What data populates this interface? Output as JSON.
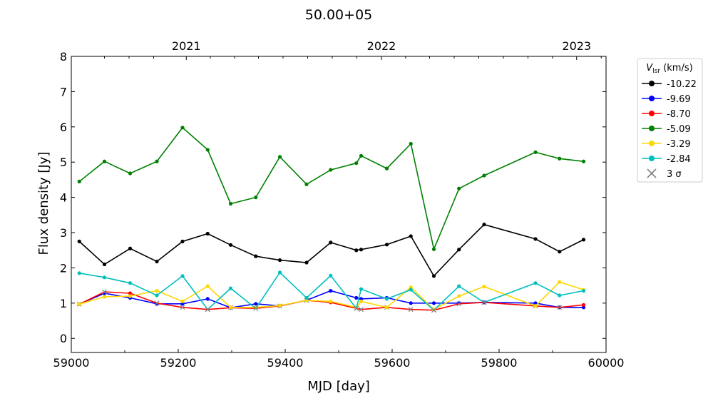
{
  "chart_data": {
    "type": "line",
    "title": "50.00+05",
    "xlabel": "MJD [day]",
    "ylabel": "Flux density [Jy]",
    "xlim": [
      59000,
      60000
    ],
    "ylim": [
      -0.4,
      8
    ],
    "xticks": [
      59000,
      59200,
      59400,
      59600,
      59800,
      60000
    ],
    "yticks": [
      0,
      1,
      2,
      3,
      4,
      5,
      6,
      7,
      8
    ],
    "top_axis": {
      "ticks": [
        {
          "label": "2021",
          "mjd": 59215
        },
        {
          "label": "2022",
          "mjd": 59580
        },
        {
          "label": "2023",
          "mjd": 59945
        }
      ]
    },
    "grid": false,
    "legend": {
      "placement": "outside-right",
      "title_main": "V",
      "title_sub": "lsr",
      "title_unit": " (km/s)",
      "limit_symbol": "3 σ",
      "limit_color": "#808080"
    },
    "x": [
      59015,
      59062,
      59110,
      59160,
      59208,
      59255,
      59298,
      59345,
      59390,
      59440,
      59485,
      59533,
      59542,
      59590,
      59635,
      59678,
      59725,
      59772,
      59868,
      59913,
      59958
    ],
    "series": [
      {
        "name": "-10.22",
        "color": "#000000",
        "values": [
          2.75,
          2.1,
          2.55,
          2.18,
          2.75,
          2.97,
          2.65,
          2.33,
          2.22,
          2.15,
          2.72,
          2.5,
          2.52,
          2.66,
          2.9,
          1.77,
          2.52,
          3.23,
          2.82,
          2.46,
          2.8
        ],
        "upper_limits": []
      },
      {
        "name": "-9.69",
        "color": "#0000ff",
        "values": [
          0.97,
          1.28,
          1.15,
          0.98,
          0.98,
          1.12,
          0.87,
          0.98,
          0.92,
          1.08,
          1.35,
          1.15,
          1.12,
          1.15,
          1.0,
          1.0,
          1.0,
          1.02,
          1.0,
          0.88,
          0.88
        ],
        "upper_limits": []
      },
      {
        "name": "-8.70",
        "color": "#ff0000",
        "values": [
          0.97,
          1.32,
          1.28,
          1.0,
          0.88,
          0.82,
          0.87,
          0.85,
          0.92,
          1.08,
          1.02,
          0.85,
          0.82,
          0.88,
          0.82,
          0.8,
          0.98,
          1.02,
          0.92,
          0.88,
          0.95
        ],
        "upper_limits": [
          0,
          1,
          3,
          4,
          5,
          6,
          7,
          8,
          9,
          11,
          12,
          13,
          14,
          15,
          16,
          17,
          18,
          19
        ]
      },
      {
        "name": "-5.09",
        "color": "#008000",
        "values": [
          4.45,
          5.02,
          4.68,
          5.02,
          5.98,
          5.35,
          3.82,
          4.0,
          5.15,
          4.37,
          4.78,
          4.97,
          5.18,
          4.82,
          5.52,
          2.53,
          4.25,
          4.62,
          5.28,
          5.1,
          5.02
        ],
        "upper_limits": []
      },
      {
        "name": "-3.29",
        "color": "#ffd700",
        "values": [
          0.97,
          1.18,
          1.2,
          1.35,
          1.05,
          1.48,
          0.88,
          0.88,
          0.93,
          1.08,
          1.05,
          0.88,
          1.05,
          0.88,
          1.45,
          0.82,
          1.2,
          1.47,
          0.92,
          1.6,
          1.38
        ],
        "upper_limits": []
      },
      {
        "name": "-2.84",
        "color": "#00bfbf",
        "values": [
          1.85,
          1.73,
          1.57,
          1.22,
          1.77,
          0.82,
          1.42,
          0.85,
          1.87,
          1.15,
          1.78,
          0.85,
          1.4,
          1.12,
          1.38,
          0.8,
          1.48,
          1.02,
          1.57,
          1.22,
          1.35
        ],
        "upper_limits": [
          5,
          7,
          11,
          15,
          17
        ]
      }
    ]
  }
}
